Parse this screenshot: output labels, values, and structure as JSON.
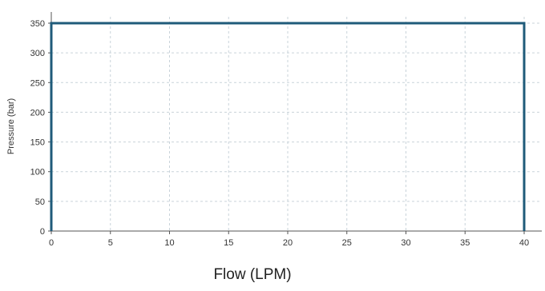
{
  "chart_data": {
    "type": "line",
    "title": "",
    "xlabel": "Flow (LPM)",
    "ylabel": "Pressure (bar)",
    "xlim": [
      0,
      40
    ],
    "ylim": [
      0,
      350
    ],
    "x_ticks": [
      0,
      5,
      10,
      15,
      20,
      25,
      30,
      35,
      40
    ],
    "y_ticks": [
      0,
      50,
      100,
      150,
      200,
      250,
      300,
      350
    ],
    "grid": true,
    "legend": "none",
    "colors": {
      "line": "#1f5b7a",
      "grid": "#c9d3da",
      "axis": "#555555"
    },
    "series": [
      {
        "x": [
          0,
          0,
          40,
          40
        ],
        "y": [
          0,
          350,
          350,
          0
        ]
      }
    ]
  }
}
